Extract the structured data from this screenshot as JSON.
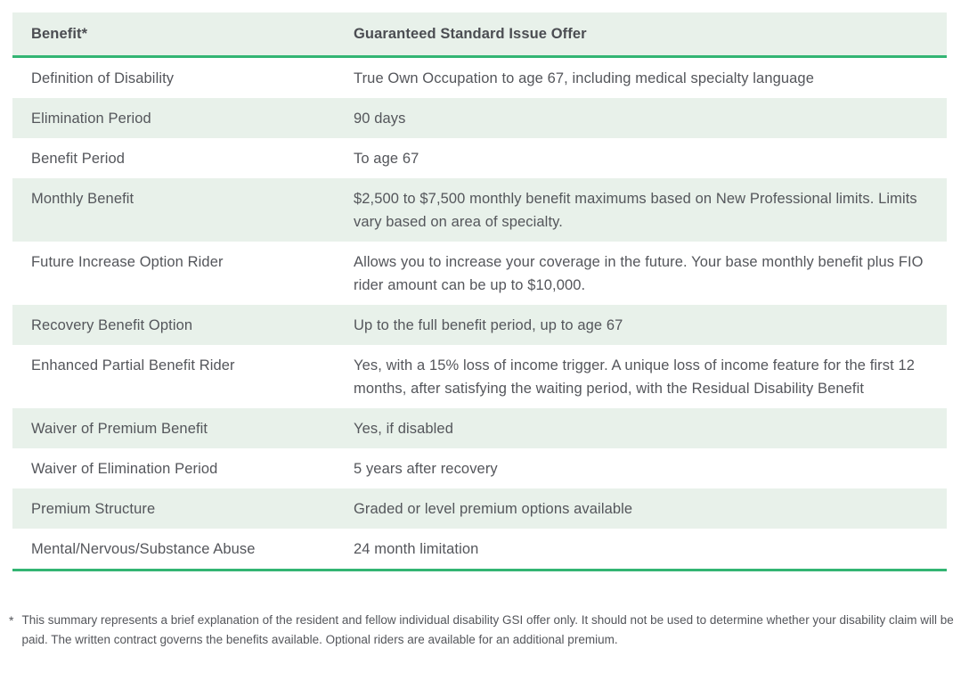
{
  "table": {
    "columns": {
      "benefit": "Benefit*",
      "offer": "Guaranteed Standard Issue Offer"
    },
    "rows": [
      {
        "benefit": "Definition of Disability",
        "offer": "True Own Occupation to age 67, including medical specialty language"
      },
      {
        "benefit": "Elimination Period",
        "offer": "90 days"
      },
      {
        "benefit": "Benefit Period",
        "offer": "To age 67"
      },
      {
        "benefit": "Monthly Benefit",
        "offer": "$2,500 to $7,500 monthly benefit maximums based on New Professional limits. Limits vary based on area of specialty."
      },
      {
        "benefit": "Future Increase Option Rider",
        "offer": "Allows you to increase your coverage in the future. Your base monthly benefit plus FIO rider amount can be up to $10,000."
      },
      {
        "benefit": "Recovery Benefit Option",
        "offer": "Up to the full benefit period, up to age 67"
      },
      {
        "benefit": "Enhanced Partial Benefit Rider",
        "offer": "Yes, with a 15% loss of income trigger. A unique loss of income feature for the first 12 months, after satisfying the waiting period, with the Residual Disability Benefit"
      },
      {
        "benefit": "Waiver of Premium Benefit",
        "offer": "Yes, if disabled"
      },
      {
        "benefit": "Waiver of Elimination Period",
        "offer": "5 years after recovery"
      },
      {
        "benefit": "Premium Structure",
        "offer": "Graded or level premium options available"
      },
      {
        "benefit": "Mental/Nervous/Substance Abuse",
        "offer": "24 month limitation"
      }
    ]
  },
  "footnote": {
    "marker": "*",
    "text": "This summary represents a brief explanation of the resident and fellow individual disability GSI offer only. It should not be used to determine whether your disability claim will be paid. The written contract governs the benefits available. Optional riders are available for an additional premium."
  },
  "colors": {
    "stripe": "#e8f1ea",
    "accent_line": "#33b573",
    "text": "#54565b"
  }
}
